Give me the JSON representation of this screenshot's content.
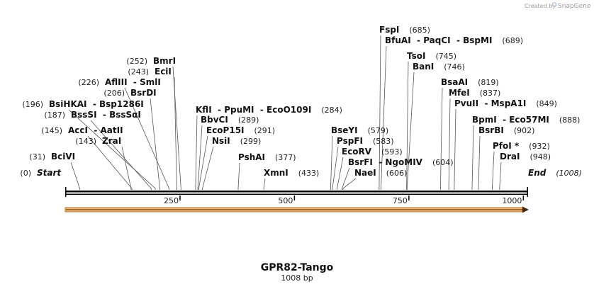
{
  "credit": {
    "text": "Created by",
    "brand": "SnapGene"
  },
  "map": {
    "title": "GPR82-Tango",
    "length": "1008 bp",
    "total_bp": 1008,
    "scale_ticks": [
      {
        "bp": 250,
        "label": "250"
      },
      {
        "bp": 500,
        "label": "500"
      },
      {
        "bp": 750,
        "label": "750"
      },
      {
        "bp": 1000,
        "label": "1000"
      }
    ]
  },
  "sites": [
    {
      "parts": [
        "Start"
      ],
      "pos": "(0)",
      "bp": 0,
      "italic": true,
      "pos_left": true
    },
    {
      "parts": [
        "BciVI"
      ],
      "pos": "(31)",
      "bp": 31,
      "pos_left": true
    },
    {
      "parts": [
        "ZraI"
      ],
      "pos": "(143)",
      "bp": 143,
      "pos_left": true
    },
    {
      "parts": [
        "AccI",
        "AatII"
      ],
      "pos": "(145)",
      "bp": 145,
      "pos_left": true
    },
    {
      "parts": [
        "BssSI",
        "BssSαI"
      ],
      "pos": "(187)",
      "bp": 187,
      "pos_left": true
    },
    {
      "parts": [
        "BsiHKAI",
        "Bsp1286I"
      ],
      "pos": "(196)",
      "bp": 196,
      "pos_left": true
    },
    {
      "parts": [
        "BsrDI"
      ],
      "pos": "(206)",
      "bp": 206,
      "pos_left": true
    },
    {
      "parts": [
        "AflIII",
        "SmlI"
      ],
      "pos": "(226)",
      "bp": 226,
      "pos_left": true
    },
    {
      "parts": [
        "EciI"
      ],
      "pos": "(243)",
      "bp": 243,
      "pos_left": true
    },
    {
      "parts": [
        "BmrI"
      ],
      "pos": "(252)",
      "bp": 252,
      "pos_left": true
    },
    {
      "parts": [
        "KflI",
        "PpuMI",
        "EcoO109I"
      ],
      "pos": "(284)",
      "bp": 284
    },
    {
      "parts": [
        "BbvCI"
      ],
      "pos": "(289)",
      "bp": 289
    },
    {
      "parts": [
        "EcoP15I"
      ],
      "pos": "(291)",
      "bp": 291
    },
    {
      "parts": [
        "NsiI"
      ],
      "pos": "(299)",
      "bp": 299
    },
    {
      "parts": [
        "PshAI"
      ],
      "pos": "(377)",
      "bp": 377
    },
    {
      "parts": [
        "XmnI"
      ],
      "pos": "(433)",
      "bp": 433
    },
    {
      "parts": [
        "BseYI"
      ],
      "pos": "(579)",
      "bp": 579
    },
    {
      "parts": [
        "PspFI"
      ],
      "pos": "(583)",
      "bp": 583
    },
    {
      "parts": [
        "EcoRV"
      ],
      "pos": "(593)",
      "bp": 593
    },
    {
      "parts": [
        "BsrFI",
        "NgoMIV"
      ],
      "pos": "(604)",
      "bp": 604
    },
    {
      "parts": [
        "NaeI"
      ],
      "pos": "(606)",
      "bp": 606
    },
    {
      "parts": [
        "FspI"
      ],
      "pos": "(685)",
      "bp": 685
    },
    {
      "parts": [
        "BfuAI",
        "PaqCI",
        "BspMI"
      ],
      "pos": "(689)",
      "bp": 689
    },
    {
      "parts": [
        "TsoI"
      ],
      "pos": "(745)",
      "bp": 745
    },
    {
      "parts": [
        "BanI"
      ],
      "pos": "(746)",
      "bp": 746
    },
    {
      "parts": [
        "BsaAI"
      ],
      "pos": "(819)",
      "bp": 819
    },
    {
      "parts": [
        "MfeI"
      ],
      "pos": "(837)",
      "bp": 837
    },
    {
      "parts": [
        "PvuII",
        "MspA1I"
      ],
      "pos": "(849)",
      "bp": 849
    },
    {
      "parts": [
        "BpmI",
        "Eco57MI"
      ],
      "pos": "(888)",
      "bp": 888
    },
    {
      "parts": [
        "BsrBI"
      ],
      "pos": "(902)",
      "bp": 902
    },
    {
      "parts": [
        "PfoI *"
      ],
      "pos": "(932)",
      "bp": 932
    },
    {
      "parts": [
        "DraI"
      ],
      "pos": "(948)",
      "bp": 948
    },
    {
      "parts": [
        "End"
      ],
      "pos": "(1008)",
      "bp": 1008,
      "italic": true
    }
  ]
}
